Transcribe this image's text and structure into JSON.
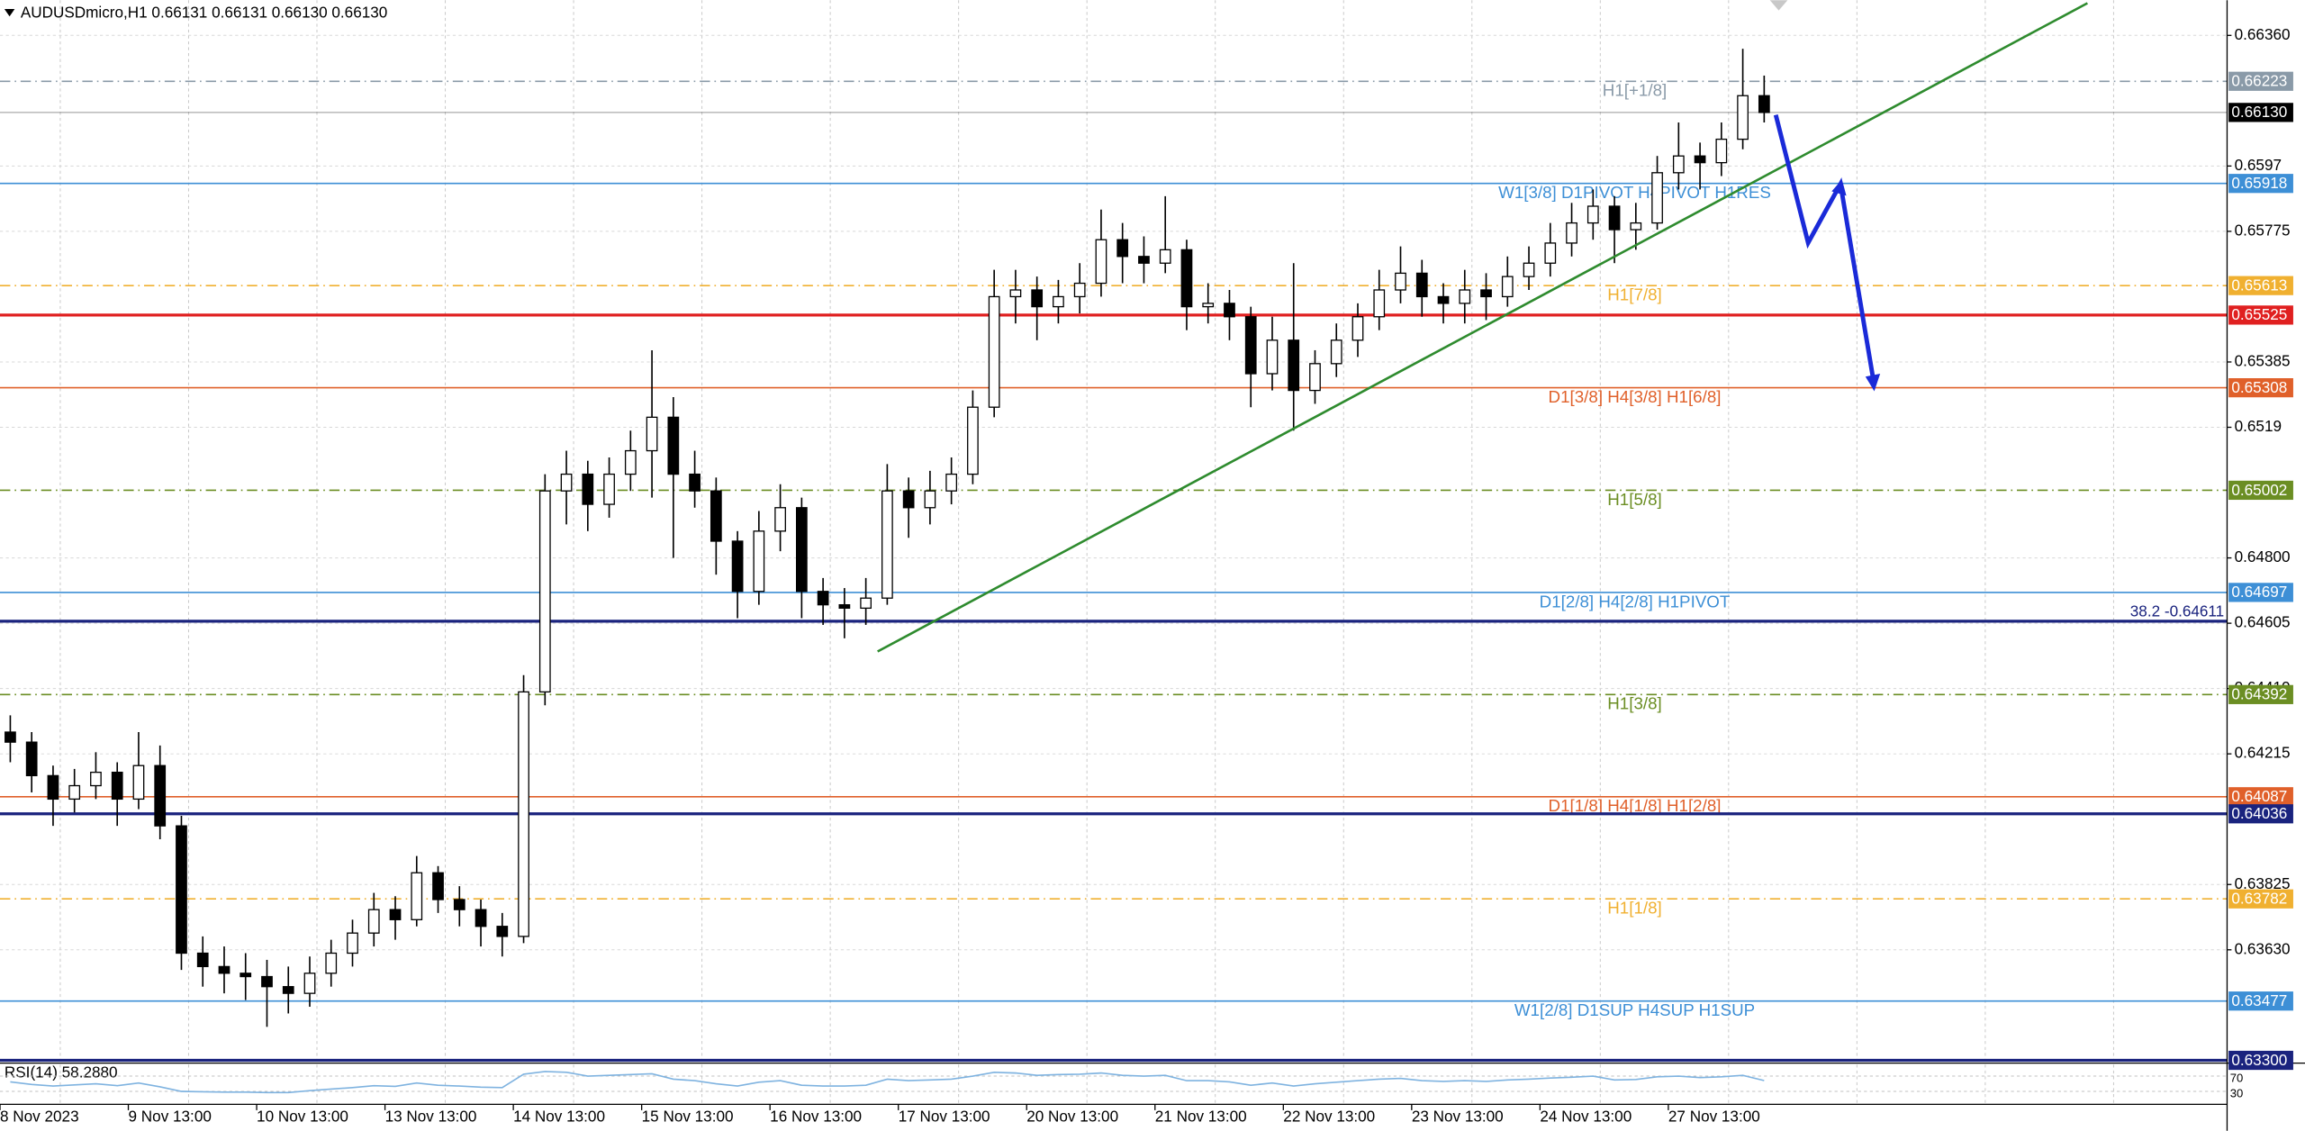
{
  "chart_data": {
    "type": "candlestick",
    "title": "AUDUSDmicro,H1  0.66131 0.66131 0.66130 0.66130",
    "categories": [
      "8 Nov 2023",
      null,
      null,
      null,
      null,
      null,
      "9 Nov 13:00",
      null,
      null,
      null,
      null,
      null,
      "10 Nov 13:00",
      null,
      null,
      null,
      null,
      null,
      "13 Nov 13:00",
      null,
      null,
      null,
      null,
      null,
      "14 Nov 13:00",
      null,
      null,
      null,
      null,
      null,
      "15 Nov 13:00",
      null,
      null,
      null,
      null,
      null,
      "16 Nov 13:00",
      null,
      null,
      null,
      null,
      null,
      "17 Nov 13:00",
      null,
      null,
      null,
      null,
      null,
      "20 Nov 13:00",
      null,
      null,
      null,
      null,
      null,
      "21 Nov 13:00",
      null,
      null,
      null,
      null,
      null,
      "22 Nov 13:00",
      null,
      null,
      null,
      null,
      null,
      "23 Nov 13:00",
      null,
      null,
      null,
      null,
      null,
      "24 Nov 13:00",
      null,
      null,
      null,
      null,
      null,
      "27 Nov 13:00",
      null,
      null,
      null,
      null
    ],
    "candles": [
      [
        0.6428,
        0.6433,
        0.6419,
        0.6425
      ],
      [
        0.6425,
        0.6428,
        0.641,
        0.6415
      ],
      [
        0.6415,
        0.6418,
        0.64,
        0.6408
      ],
      [
        0.6408,
        0.6417,
        0.6404,
        0.6412
      ],
      [
        0.6412,
        0.6422,
        0.6408,
        0.6416
      ],
      [
        0.6416,
        0.6419,
        0.64,
        0.6408
      ],
      [
        0.6408,
        0.6428,
        0.6405,
        0.6418
      ],
      [
        0.6418,
        0.6424,
        0.6396,
        0.64
      ],
      [
        0.64,
        0.6403,
        0.6357,
        0.6362
      ],
      [
        0.6362,
        0.6367,
        0.6352,
        0.6358
      ],
      [
        0.6358,
        0.6364,
        0.635,
        0.6356
      ],
      [
        0.6356,
        0.6362,
        0.6348,
        0.6355
      ],
      [
        0.6355,
        0.636,
        0.634,
        0.6352
      ],
      [
        0.6352,
        0.6358,
        0.6344,
        0.635
      ],
      [
        0.635,
        0.6361,
        0.6346,
        0.6356
      ],
      [
        0.6356,
        0.6366,
        0.6352,
        0.6362
      ],
      [
        0.6362,
        0.6372,
        0.6358,
        0.6368
      ],
      [
        0.6368,
        0.638,
        0.6364,
        0.6375
      ],
      [
        0.6375,
        0.6379,
        0.6366,
        0.6372
      ],
      [
        0.6372,
        0.6391,
        0.637,
        0.6386
      ],
      [
        0.6386,
        0.6388,
        0.6374,
        0.6378
      ],
      [
        0.6378,
        0.6382,
        0.637,
        0.6375
      ],
      [
        0.6375,
        0.6378,
        0.6364,
        0.637
      ],
      [
        0.637,
        0.6374,
        0.6361,
        0.6367
      ],
      [
        0.6367,
        0.6445,
        0.6365,
        0.644
      ],
      [
        0.644,
        0.6505,
        0.6436,
        0.65
      ],
      [
        0.65,
        0.6512,
        0.649,
        0.6505
      ],
      [
        0.6505,
        0.6509,
        0.6488,
        0.6496
      ],
      [
        0.6496,
        0.651,
        0.6492,
        0.6505
      ],
      [
        0.6505,
        0.6518,
        0.65,
        0.6512
      ],
      [
        0.6512,
        0.6542,
        0.6498,
        0.6522
      ],
      [
        0.6522,
        0.6528,
        0.648,
        0.6505
      ],
      [
        0.6505,
        0.6512,
        0.6495,
        0.65
      ],
      [
        0.65,
        0.6504,
        0.6475,
        0.6485
      ],
      [
        0.6485,
        0.6488,
        0.6462,
        0.647
      ],
      [
        0.647,
        0.6494,
        0.6466,
        0.6488
      ],
      [
        0.6488,
        0.6502,
        0.6482,
        0.6495
      ],
      [
        0.6495,
        0.6498,
        0.6462,
        0.647
      ],
      [
        0.647,
        0.6474,
        0.646,
        0.6466
      ],
      [
        0.6466,
        0.6471,
        0.6456,
        0.6465
      ],
      [
        0.6465,
        0.6474,
        0.646,
        0.6468
      ],
      [
        0.6468,
        0.6508,
        0.6466,
        0.65
      ],
      [
        0.65,
        0.6504,
        0.6486,
        0.6495
      ],
      [
        0.6495,
        0.6506,
        0.649,
        0.65
      ],
      [
        0.65,
        0.651,
        0.6496,
        0.6505
      ],
      [
        0.6505,
        0.653,
        0.6502,
        0.6525
      ],
      [
        0.6525,
        0.6566,
        0.6522,
        0.6558
      ],
      [
        0.6558,
        0.6566,
        0.655,
        0.656
      ],
      [
        0.656,
        0.6564,
        0.6545,
        0.6555
      ],
      [
        0.6555,
        0.6563,
        0.655,
        0.6558
      ],
      [
        0.6558,
        0.6568,
        0.6553,
        0.6562
      ],
      [
        0.6562,
        0.6584,
        0.6558,
        0.6575
      ],
      [
        0.6575,
        0.658,
        0.6562,
        0.657
      ],
      [
        0.657,
        0.6576,
        0.6562,
        0.6568
      ],
      [
        0.6568,
        0.6588,
        0.6565,
        0.6572
      ],
      [
        0.6572,
        0.6575,
        0.6548,
        0.6555
      ],
      [
        0.6555,
        0.6562,
        0.655,
        0.6556
      ],
      [
        0.6556,
        0.656,
        0.6545,
        0.6552
      ],
      [
        0.6552,
        0.6555,
        0.6525,
        0.6535
      ],
      [
        0.6535,
        0.6552,
        0.653,
        0.6545
      ],
      [
        0.6545,
        0.6568,
        0.6518,
        0.653
      ],
      [
        0.653,
        0.6542,
        0.6526,
        0.6538
      ],
      [
        0.6538,
        0.655,
        0.6534,
        0.6545
      ],
      [
        0.6545,
        0.6556,
        0.654,
        0.6552
      ],
      [
        0.6552,
        0.6566,
        0.6548,
        0.656
      ],
      [
        0.656,
        0.6573,
        0.6556,
        0.6565
      ],
      [
        0.6565,
        0.6569,
        0.6552,
        0.6558
      ],
      [
        0.6558,
        0.6562,
        0.655,
        0.6556
      ],
      [
        0.6556,
        0.6566,
        0.655,
        0.656
      ],
      [
        0.656,
        0.6565,
        0.6551,
        0.6558
      ],
      [
        0.6558,
        0.657,
        0.6555,
        0.6564
      ],
      [
        0.6564,
        0.6573,
        0.656,
        0.6568
      ],
      [
        0.6568,
        0.658,
        0.6564,
        0.6574
      ],
      [
        0.6574,
        0.6586,
        0.657,
        0.658
      ],
      [
        0.658,
        0.659,
        0.6575,
        0.6585
      ],
      [
        0.6585,
        0.6588,
        0.6568,
        0.6578
      ],
      [
        0.6578,
        0.6586,
        0.6572,
        0.658
      ],
      [
        0.658,
        0.66,
        0.6578,
        0.6595
      ],
      [
        0.6595,
        0.661,
        0.659,
        0.66
      ],
      [
        0.66,
        0.6604,
        0.659,
        0.6598
      ],
      [
        0.6598,
        0.661,
        0.6594,
        0.6605
      ],
      [
        0.6605,
        0.6632,
        0.6602,
        0.6618
      ],
      [
        0.6618,
        0.6624,
        0.661,
        0.6613
      ]
    ],
    "up_color": "#ffffff",
    "down_color": "#000000",
    "ylim": [
      0.63296,
      0.66465
    ],
    "yticks": [
      {
        "value": 0.6636,
        "label": "0.66360"
      },
      0.6597,
      0.65775,
      0.65385,
      0.6519,
      {
        "value": 0.648,
        "label": "0.64800"
      },
      0.64605,
      {
        "value": 0.6441,
        "label": "0.64410"
      },
      0.64215,
      0.63825,
      {
        "value": 0.6363,
        "label": "0.63630"
      }
    ],
    "grid": true,
    "levels": [
      {
        "name": "H1[+1/8]",
        "value": 0.66223,
        "color": "#8a9aa8",
        "style": "dashdot",
        "width": 1,
        "box": true
      },
      {
        "value": 0.6613,
        "value_label": "0.66130",
        "color": "#000000",
        "style": "solid",
        "width": 1,
        "box": true
      },
      {
        "name": "W1[3/8] D1PIVOT H4PIVOT H1RES",
        "value": 0.65918,
        "color": "#3d8fd6",
        "style": "solid",
        "width": 1,
        "box": true
      },
      {
        "name": "H1[7/8]",
        "value": 0.65613,
        "color": "#f0b030",
        "style": "dashdot",
        "width": 1,
        "box": true
      },
      {
        "value": 0.65525,
        "color": "#e02020",
        "style": "solid",
        "width": 2,
        "box": true
      },
      {
        "name": "D1[3/8] H4[3/8] H1[6/8]",
        "value": 0.65308,
        "color": "#e0602a",
        "style": "solid",
        "width": 1,
        "box": true
      },
      {
        "name": "H1[5/8]",
        "value": 0.65002,
        "color": "#6b8e23",
        "style": "dashdot",
        "width": 1,
        "box": true
      },
      {
        "name": "D1[2/8] H4[2/8] H1PIVOT",
        "value": 0.64697,
        "color": "#3d8fd6",
        "style": "solid",
        "width": 1,
        "box": true
      },
      {
        "name": "38.2 -0.64611",
        "value": 0.64611,
        "color": "#1a237e",
        "style": "solid",
        "width": 2,
        "box": false
      },
      {
        "name": "H1[3/8]",
        "value": 0.64392,
        "color": "#6b8e23",
        "style": "dashdot",
        "width": 1,
        "box": true
      },
      {
        "name": "D1[1/8] H4[1/8] H1[2/8]",
        "value": 0.64087,
        "color": "#e0602a",
        "style": "solid",
        "width": 1,
        "box": true
      },
      {
        "value": 0.64036,
        "color": "#1a237e",
        "style": "solid",
        "width": 2,
        "box": true
      },
      {
        "name": "H1[1/8]",
        "value": 0.63782,
        "color": "#f0b030",
        "style": "dashdot",
        "width": 1,
        "box": true
      },
      {
        "name": "W1[2/8] D1SUP H4SUP H1SUP",
        "value": 0.63477,
        "color": "#3d8fd6",
        "style": "solid",
        "width": 1,
        "box": true
      },
      {
        "value": 0.633,
        "value_label": "0.63300",
        "color": "#1a237e",
        "style": "solid",
        "width": 2,
        "box": true
      }
    ],
    "rsi": {
      "label": "RSI(14) 58.2880",
      "ylim": [
        0,
        100
      ],
      "yticks": [
        70,
        30
      ],
      "color": "#7fb3e0",
      "values": [
        55,
        48,
        44,
        47,
        50,
        45,
        52,
        42,
        30,
        29,
        28,
        28,
        27,
        27,
        32,
        36,
        40,
        45,
        43,
        52,
        46,
        44,
        41,
        40,
        75,
        82,
        80,
        70,
        72,
        74,
        76,
        62,
        58,
        50,
        44,
        54,
        58,
        46,
        44,
        44,
        46,
        62,
        58,
        60,
        62,
        70,
        80,
        78,
        72,
        74,
        75,
        78,
        72,
        70,
        72,
        58,
        58,
        55,
        46,
        52,
        44,
        50,
        54,
        58,
        62,
        64,
        58,
        56,
        58,
        56,
        60,
        62,
        65,
        67,
        70,
        60,
        61,
        68,
        70,
        66,
        68,
        72,
        58.288
      ]
    }
  }
}
